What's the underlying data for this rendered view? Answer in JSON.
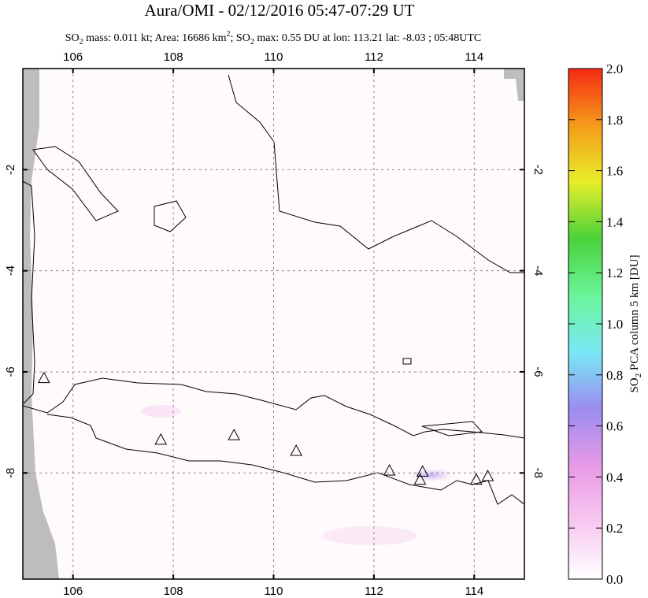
{
  "chart_data": {
    "type": "map",
    "title": "Aura/OMI - 02/12/2016 05:47-07:29 UT",
    "subtitle": [
      "SO",
      "2",
      " mass: 0.011 kt; Area: 16686 km",
      "2",
      "; SO",
      "2",
      " max: 0.55 DU at lon: 113.21 lat: -8.03 ; 05:48UTC"
    ],
    "xlim": [
      105,
      115
    ],
    "xticks": [
      106,
      108,
      110,
      112,
      114
    ],
    "ylim": [
      -10.1,
      0
    ],
    "yticks": [
      -2,
      -4,
      -6,
      -8
    ],
    "grid": true,
    "volcanoes": {
      "lon": [
        105.42,
        107.75,
        109.21,
        110.45,
        112.31,
        112.97,
        112.92,
        114.04,
        114.27
      ],
      "lat": [
        -6.12,
        -7.34,
        -7.25,
        -7.56,
        -7.95,
        -7.97,
        -8.13,
        -8.13,
        -8.06
      ]
    },
    "colorbar": {
      "label": [
        "SO",
        "2",
        " PCA column 5 km [DU]"
      ],
      "lim": [
        0,
        2
      ],
      "ticks": [
        {
          "value": 0,
          "label": "0.0"
        },
        0.2,
        0.4,
        0.6,
        0.8,
        {
          "value": 1,
          "label": "1.0"
        },
        1.2,
        1.4,
        1.6,
        1.8,
        {
          "value": 2,
          "label": "2.0"
        }
      ],
      "colors": [
        "#ffffff",
        "#f7c8f0",
        "#e89ae6",
        "#9b8cf0",
        "#79e8f5",
        "#6af59a",
        "#4ad23a",
        "#e8ee2a",
        "#f59a1a",
        "#f52a14"
      ]
    }
  }
}
